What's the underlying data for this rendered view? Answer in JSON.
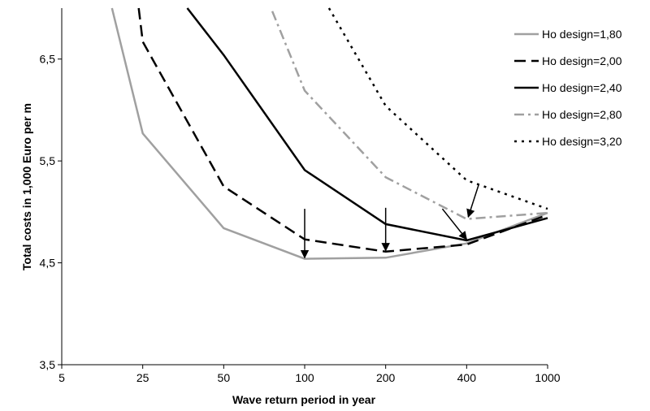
{
  "chart_data": {
    "type": "line",
    "title": "",
    "xlabel": "Wave return period in year",
    "ylabel": "Total costs in 1,000 Euro per m",
    "categories": [
      "5",
      "25",
      "50",
      "100",
      "200",
      "400",
      "1000"
    ],
    "ylim": [
      3.5,
      7.0
    ],
    "yticks": [
      "3,5",
      "4,5",
      "5,5",
      "6,5"
    ],
    "ytick_values": [
      3.5,
      4.5,
      5.5,
      6.5
    ],
    "grid": false,
    "legend_position": "right",
    "series": [
      {
        "name": "Ho design=1,80",
        "color": "#a0a0a0",
        "dash": "solid",
        "points": [
          [
            0.62,
            7.0
          ],
          [
            1,
            5.77
          ],
          [
            2,
            4.84
          ],
          [
            3,
            4.54
          ],
          [
            4,
            4.55
          ],
          [
            5,
            4.69
          ],
          [
            6,
            4.99
          ]
        ]
      },
      {
        "name": "Ho design=2,00",
        "color": "#000000",
        "dash": "long-dash",
        "points": [
          [
            0.95,
            7.0
          ],
          [
            1,
            6.67
          ],
          [
            2,
            5.25
          ],
          [
            3,
            4.73
          ],
          [
            4,
            4.61
          ],
          [
            5,
            4.68
          ],
          [
            6,
            4.97
          ]
        ]
      },
      {
        "name": "Ho design=2,40",
        "color": "#000000",
        "dash": "solid",
        "points": [
          [
            1.55,
            7.0
          ],
          [
            2,
            6.54
          ],
          [
            3,
            5.41
          ],
          [
            4,
            4.88
          ],
          [
            5,
            4.72
          ],
          [
            6,
            4.94
          ]
        ]
      },
      {
        "name": "Ho design=2,80",
        "color": "#a0a0a0",
        "dash": "dash-dot",
        "points": [
          [
            2.6,
            6.97
          ],
          [
            3,
            6.19
          ],
          [
            4,
            5.34
          ],
          [
            5,
            4.93
          ],
          [
            6,
            4.99
          ]
        ]
      },
      {
        "name": "Ho design=3,20",
        "color": "#000000",
        "dash": "dotted",
        "points": [
          [
            3.3,
            7.0
          ],
          [
            4,
            6.04
          ],
          [
            5,
            5.31
          ],
          [
            6,
            5.03
          ]
        ]
      }
    ],
    "annotations": [
      {
        "type": "arrow",
        "from": [
          3,
          5.03
        ],
        "to": [
          3,
          4.55
        ]
      },
      {
        "type": "arrow",
        "from": [
          4,
          5.04
        ],
        "to": [
          4,
          4.62
        ]
      },
      {
        "type": "arrow",
        "from": [
          4.7,
          5.03
        ],
        "to": [
          5,
          4.73
        ]
      },
      {
        "type": "arrow",
        "from": [
          5.15,
          5.27
        ],
        "to": [
          5.02,
          4.95
        ]
      }
    ]
  }
}
